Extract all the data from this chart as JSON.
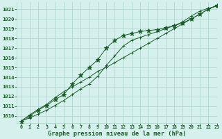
{
  "title": "Graphe pression niveau de la mer (hPa)",
  "bg_color": "#d6f0ee",
  "grid_color": "#b0d8cc",
  "line_color": "#1a5c28",
  "xlim": [
    -0.5,
    23
  ],
  "ylim": [
    1009.3,
    1021.7
  ],
  "yticks": [
    1010,
    1011,
    1012,
    1013,
    1014,
    1015,
    1016,
    1017,
    1018,
    1019,
    1020,
    1021
  ],
  "xticks": [
    0,
    1,
    2,
    3,
    4,
    5,
    6,
    7,
    8,
    9,
    10,
    11,
    12,
    13,
    14,
    15,
    16,
    17,
    18,
    19,
    20,
    21,
    22,
    23
  ],
  "series": [
    {
      "x": [
        0,
        1,
        2,
        3,
        4,
        5,
        6,
        7,
        8,
        9,
        10,
        11,
        12,
        13,
        14,
        15,
        16,
        17,
        18,
        19,
        20,
        21,
        22,
        23
      ],
      "y": [
        1009.5,
        1010.1,
        1010.7,
        1011.2,
        1011.9,
        1012.5,
        1013.0,
        1013.5,
        1014.0,
        1014.6,
        1015.0,
        1015.5,
        1016.0,
        1016.5,
        1017.0,
        1017.5,
        1018.0,
        1018.5,
        1019.0,
        1019.5,
        1020.0,
        1020.5,
        1021.0,
        1021.4
      ],
      "marker": "+"
    },
    {
      "x": [
        0,
        1,
        2,
        3,
        4,
        5,
        6,
        7,
        8,
        9,
        10,
        11,
        12,
        13,
        14,
        15,
        16,
        17,
        18,
        19,
        20,
        21,
        22,
        23
      ],
      "y": [
        1009.5,
        1009.8,
        1010.2,
        1010.6,
        1011.1,
        1011.6,
        1012.2,
        1012.8,
        1013.3,
        1014.1,
        1015.2,
        1016.2,
        1017.2,
        1017.8,
        1018.1,
        1018.4,
        1018.7,
        1019.0,
        1019.3,
        1019.7,
        1020.3,
        1020.8,
        1021.1,
        1021.3
      ],
      "marker": "+"
    },
    {
      "x": [
        0,
        1,
        2,
        3,
        4,
        5,
        6,
        7,
        8,
        9,
        10,
        11,
        12,
        13,
        14,
        15,
        16,
        17,
        18,
        19,
        20,
        21,
        22,
        23
      ],
      "y": [
        1009.4,
        1010.0,
        1010.6,
        1011.1,
        1011.7,
        1012.2,
        1013.3,
        1014.2,
        1015.0,
        1015.8,
        1017.0,
        1017.8,
        1018.3,
        1018.5,
        1018.7,
        1018.8,
        1018.9,
        1019.1,
        1019.3,
        1019.6,
        1020.0,
        1020.5,
        1021.0,
        1021.4
      ],
      "marker": "*"
    }
  ],
  "figsize": [
    3.2,
    2.0
  ],
  "dpi": 100
}
